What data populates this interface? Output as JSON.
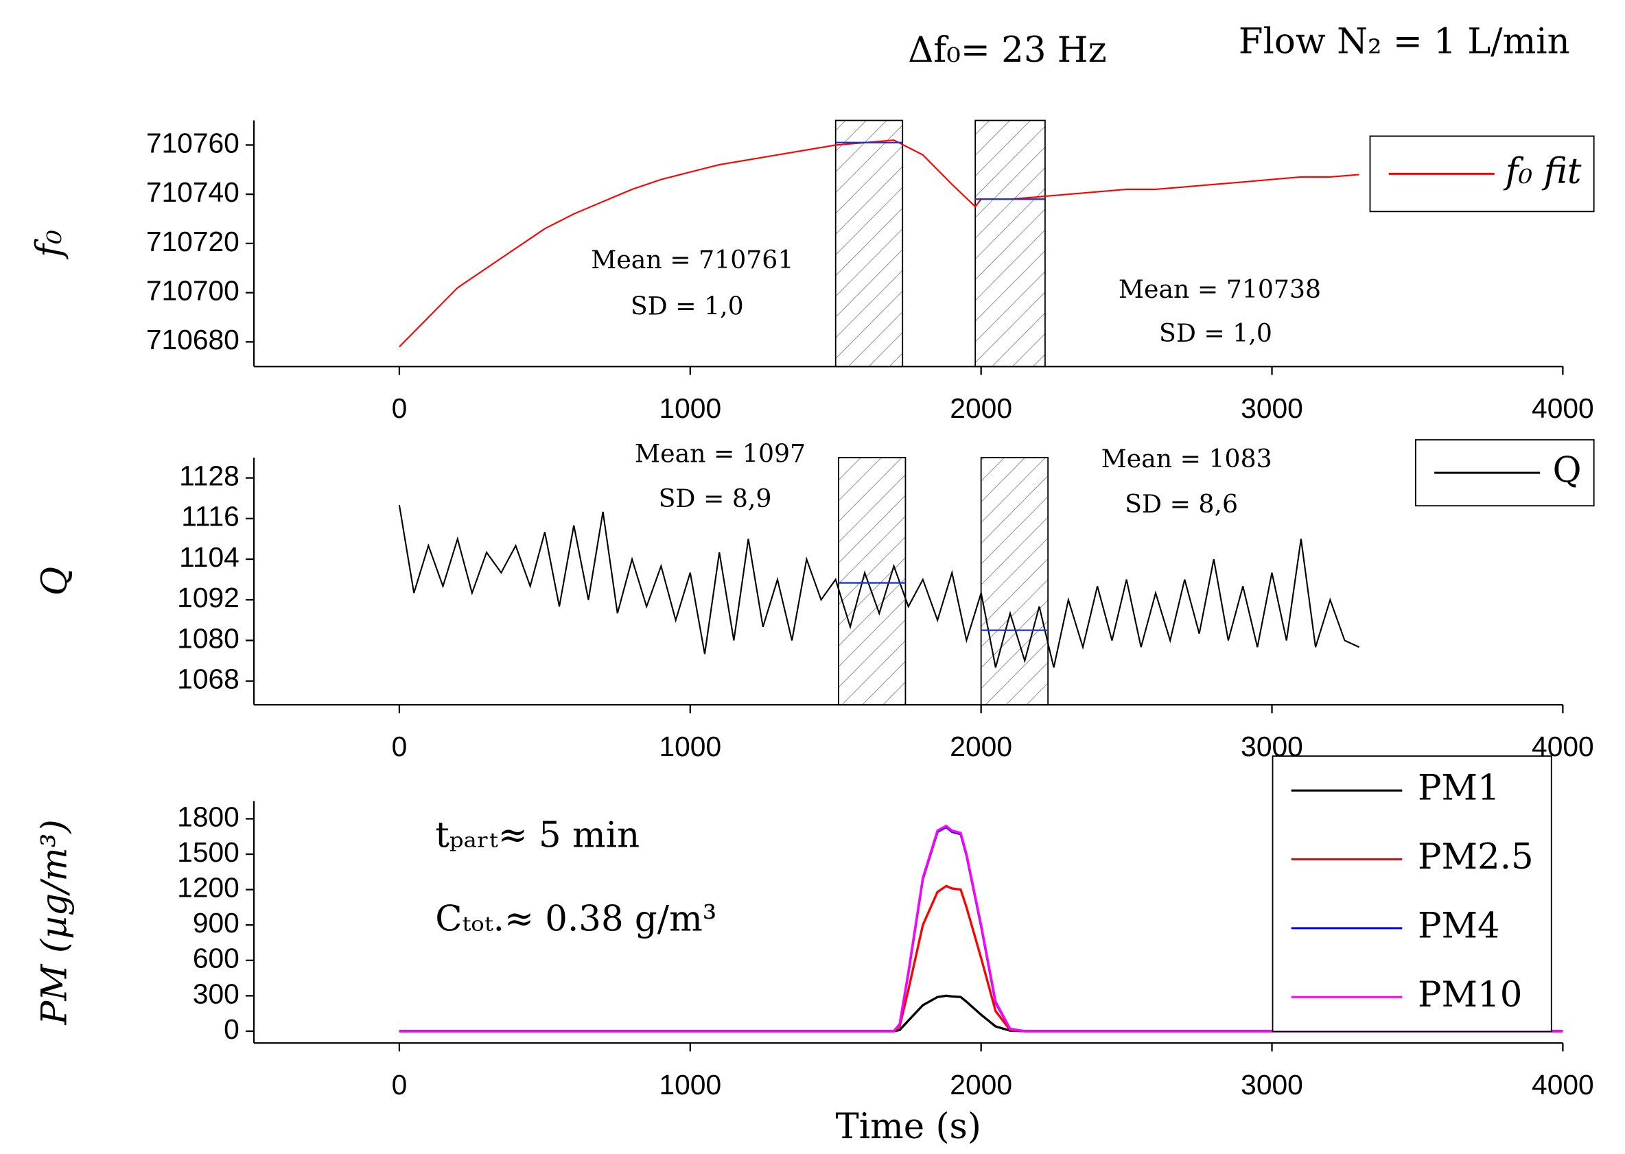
{
  "chart_data": [
    {
      "type": "line",
      "texts": [
        "Δf₀= 23 Hz",
        "Flow N₂ = 1 L/min"
      ],
      "ylabel": "f₀",
      "xlim": [
        -500,
        4000
      ],
      "xticks": [
        0,
        1000,
        2000,
        3000,
        4000
      ],
      "ylim": [
        710670,
        710770
      ],
      "yticks": [
        710680,
        710700,
        710720,
        710740,
        710760
      ],
      "x": [
        0,
        100,
        200,
        300,
        400,
        500,
        600,
        700,
        800,
        900,
        1000,
        1100,
        1200,
        1300,
        1400,
        1500,
        1600,
        1700,
        1800,
        1900,
        1980,
        2000,
        2100,
        2200,
        2300,
        2400,
        2500,
        2600,
        2700,
        2800,
        2900,
        3000,
        3100,
        3200,
        3300
      ],
      "series": [
        {
          "name": "f₀ fit",
          "color": "#ff0000",
          "values": [
            710678,
            710690,
            710702,
            710710,
            710718,
            710726,
            710732,
            710737,
            710742,
            710746,
            710749,
            710752,
            710754,
            710756,
            710758,
            710760,
            710761,
            710762,
            710756,
            710744,
            710735,
            710738,
            710738,
            710739,
            710740,
            710741,
            710742,
            710742,
            710743,
            710744,
            710745,
            710746,
            710747,
            710747,
            710748
          ]
        }
      ],
      "regions": [
        {
          "x": [
            1500,
            1730
          ],
          "mean": 710761
        },
        {
          "x": [
            1980,
            2220
          ],
          "mean": 710738
        }
      ],
      "annotations": [
        "Mean = 710761",
        "SD = 1,0",
        "Mean = 710738",
        "SD = 1,0"
      ]
    },
    {
      "type": "line",
      "ylabel": "Q",
      "xlim": [
        -500,
        4000
      ],
      "xticks": [
        0,
        1000,
        2000,
        3000,
        4000
      ],
      "ylim": [
        1061,
        1134
      ],
      "yticks": [
        1068,
        1080,
        1092,
        1104,
        1116,
        1128
      ],
      "x": [
        0,
        50,
        100,
        150,
        200,
        250,
        300,
        350,
        400,
        450,
        500,
        550,
        600,
        650,
        700,
        750,
        800,
        850,
        900,
        950,
        1000,
        1050,
        1100,
        1150,
        1200,
        1250,
        1300,
        1350,
        1400,
        1450,
        1500,
        1550,
        1600,
        1650,
        1700,
        1750,
        1800,
        1850,
        1900,
        1950,
        2000,
        2050,
        2100,
        2150,
        2200,
        2250,
        2300,
        2350,
        2400,
        2450,
        2500,
        2550,
        2600,
        2650,
        2700,
        2750,
        2800,
        2850,
        2900,
        2950,
        3000,
        3050,
        3100,
        3150,
        3200,
        3250,
        3300
      ],
      "series": [
        {
          "name": "Q",
          "color": "#000000",
          "values": [
            1120,
            1094,
            1108,
            1096,
            1110,
            1094,
            1106,
            1100,
            1108,
            1096,
            1112,
            1090,
            1114,
            1092,
            1118,
            1088,
            1104,
            1090,
            1102,
            1086,
            1100,
            1076,
            1106,
            1080,
            1110,
            1084,
            1098,
            1080,
            1104,
            1092,
            1098,
            1084,
            1100,
            1088,
            1102,
            1090,
            1098,
            1086,
            1100,
            1080,
            1094,
            1072,
            1088,
            1074,
            1090,
            1072,
            1092,
            1078,
            1096,
            1080,
            1098,
            1078,
            1094,
            1080,
            1098,
            1082,
            1104,
            1080,
            1096,
            1078,
            1100,
            1080,
            1110,
            1078,
            1092,
            1080,
            1078
          ]
        }
      ],
      "regions": [
        {
          "x": [
            1510,
            1740
          ],
          "mean": 1097
        },
        {
          "x": [
            2000,
            2230
          ],
          "mean": 1083
        }
      ],
      "annotations": [
        "Mean = 1097",
        "SD = 8,9",
        "Mean = 1083",
        "SD = 8,6"
      ]
    },
    {
      "type": "line",
      "ylabel": "PM (µg/m³)",
      "xlabel": "Time (s)",
      "xlim": [
        -500,
        4000
      ],
      "xticks": [
        0,
        1000,
        2000,
        3000,
        4000
      ],
      "ylim": [
        -100,
        1950
      ],
      "yticks": [
        0,
        300,
        600,
        900,
        1200,
        1500,
        1800
      ],
      "x": [
        0,
        1700,
        1720,
        1750,
        1800,
        1850,
        1880,
        1900,
        1930,
        1950,
        2000,
        2050,
        2100,
        2150,
        4000
      ],
      "series": [
        {
          "name": "PM1",
          "color": "#000000",
          "values": [
            0,
            0,
            10,
            90,
            220,
            290,
            300,
            295,
            290,
            250,
            140,
            40,
            5,
            0,
            0
          ]
        },
        {
          "name": "PM2.5",
          "color": "#ff0000",
          "values": [
            0,
            0,
            40,
            350,
            900,
            1180,
            1230,
            1210,
            1200,
            1050,
            620,
            170,
            10,
            0,
            0
          ]
        },
        {
          "name": "PM4",
          "color": "#0000ff",
          "values": [
            0,
            0,
            60,
            490,
            1290,
            1690,
            1730,
            1690,
            1670,
            1490,
            890,
            240,
            20,
            0,
            0
          ]
        },
        {
          "name": "PM10",
          "color": "#ff00ff",
          "values": [
            0,
            0,
            60,
            500,
            1300,
            1700,
            1740,
            1700,
            1680,
            1500,
            900,
            250,
            20,
            0,
            0
          ]
        }
      ],
      "annotations": [
        "tₚₐᵣₜ≈ 5 min",
        "Cₜₒₜ.≈ 0.38 g/m³"
      ]
    }
  ]
}
